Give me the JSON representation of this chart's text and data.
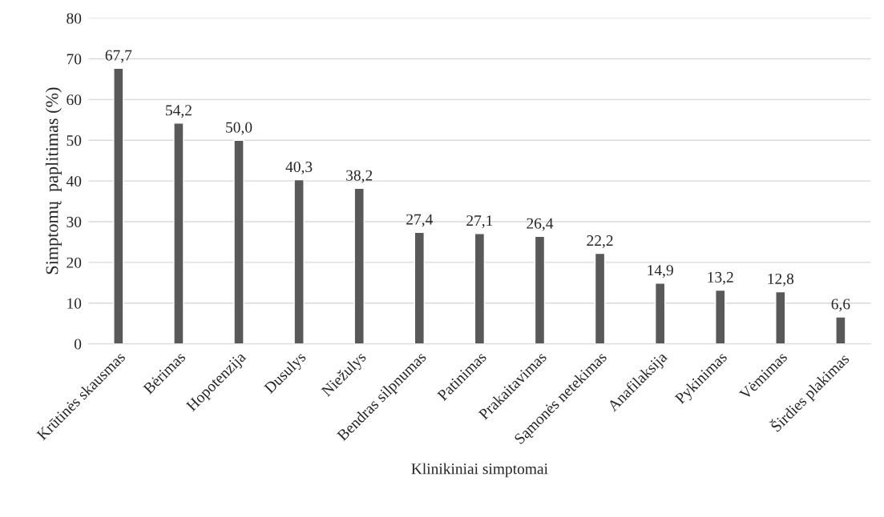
{
  "chart_data": {
    "type": "bar",
    "xlabel": "Klinikiniai simptomai",
    "ylabel": "Simptomų  paplitimas (%)",
    "categories": [
      "Krūtinės skausmas",
      "Bėrimas",
      "Hopotenzija",
      "Dusulys",
      "Niežulys",
      "Bendras silpnumas",
      "Patinimas",
      "Prakaitavimas",
      "Sąmonės netekimas",
      "Anafilaksija",
      "Pykinimas",
      "Vėmimas",
      "Širdies plakimas"
    ],
    "values": [
      67.7,
      54.2,
      50.0,
      40.3,
      38.2,
      27.4,
      27.1,
      26.4,
      22.2,
      14.9,
      13.2,
      12.8,
      6.6
    ],
    "value_labels": [
      "67,7",
      "54,2",
      "50,0",
      "40,3",
      "38,2",
      "27,4",
      "27,1",
      "26,4",
      "22,2",
      "14,9",
      "13,2",
      "12,8",
      "6,6"
    ],
    "color": "#595959",
    "ylim": [
      0,
      80
    ],
    "yticks": [
      0,
      10,
      20,
      30,
      40,
      50,
      60,
      70,
      80
    ],
    "grid": "y",
    "legend": false
  }
}
